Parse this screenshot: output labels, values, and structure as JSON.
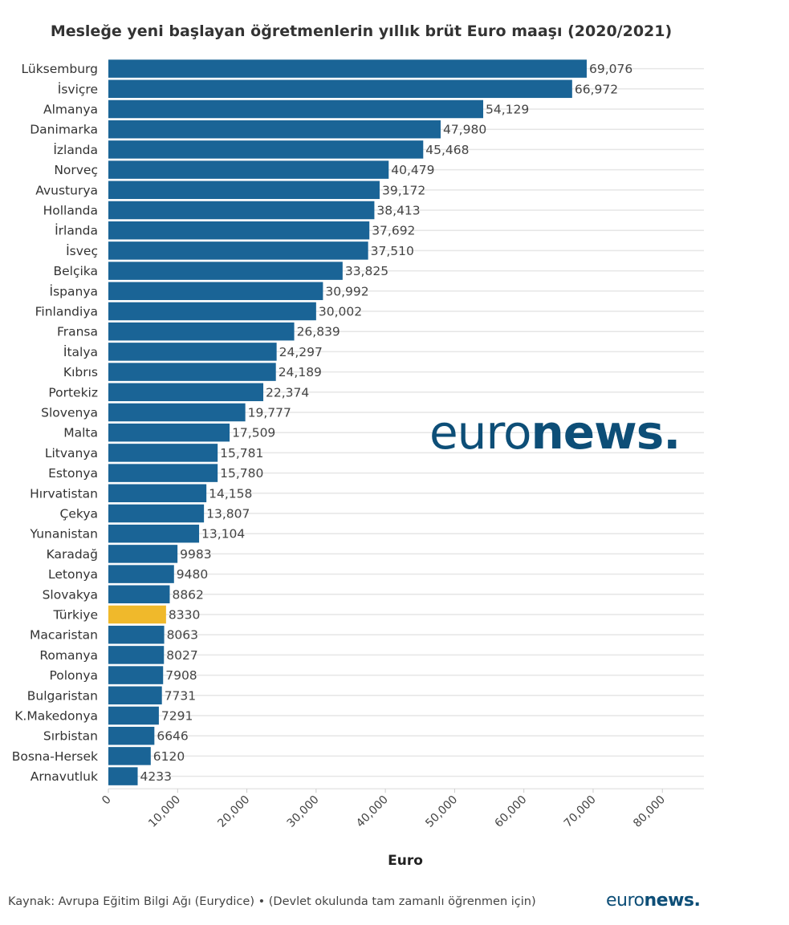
{
  "title": "Mesleğe yeni başlayan öğretmenlerin yıllık brüt Euro maaşı (2020/2021)",
  "source": "Kaynak: Avrupa Eğitim Bilgi Ağı (Eurydice) • (Devlet okulunda tam zamanlı öğrenmen için)",
  "brand": {
    "light": "euro",
    "bold": "news."
  },
  "colors": {
    "bar": "#1a6496",
    "highlight": "#f0b92b",
    "grid": "#e6e6e6",
    "brand": "#0d4e77"
  },
  "chart_data": {
    "type": "bar",
    "orientation": "horizontal",
    "title": "Mesleğe yeni başlayan öğretmenlerin yıllık brüt Euro maaşı (2020/2021)",
    "xlabel": "Euro",
    "ylabel": "",
    "xlim": [
      0,
      86000
    ],
    "xticks": [
      0,
      10000,
      20000,
      30000,
      40000,
      50000,
      60000,
      70000,
      80000
    ],
    "xtick_labels": [
      "0",
      "10,000",
      "20,000",
      "30,000",
      "40,000",
      "50,000",
      "60,000",
      "70,000",
      "80,000"
    ],
    "grid": true,
    "highlight_category": "Türkiye",
    "categories": [
      "Lüksemburg",
      "İsviçre",
      "Almanya",
      "Danimarka",
      "İzlanda",
      "Norveç",
      "Avusturya",
      "Hollanda",
      "İrlanda",
      "İsveç",
      "Belçika",
      "İspanya",
      "Finlandiya",
      "Fransa",
      "İtalya",
      "Kıbrıs",
      "Portekiz",
      "Slovenya",
      "Malta",
      "Litvanya",
      "Estonya",
      "Hırvatistan",
      "Çekya",
      "Yunanistan",
      "Karadağ",
      "Letonya",
      "Slovakya",
      "Türkiye",
      "Macaristan",
      "Romanya",
      "Polonya",
      "Bulgaristan",
      "K.Makedonya",
      "Sırbistan",
      "Bosna-Hersek",
      "Arnavutluk"
    ],
    "values": [
      69076,
      66972,
      54129,
      47980,
      45468,
      40479,
      39172,
      38413,
      37692,
      37510,
      33825,
      30992,
      30002,
      26839,
      24297,
      24189,
      22374,
      19777,
      17509,
      15781,
      15780,
      14158,
      13807,
      13104,
      9983,
      9480,
      8862,
      8330,
      8063,
      8027,
      7908,
      7731,
      7291,
      6646,
      6120,
      4233
    ],
    "value_labels": [
      "69,076",
      "66,972",
      "54,129",
      "47,980",
      "45,468",
      "40,479",
      "39,172",
      "38,413",
      "37,692",
      "37,510",
      "33,825",
      "30,992",
      "30,002",
      "26,839",
      "24,297",
      "24,189",
      "22,374",
      "19,777",
      "17,509",
      "15,781",
      "15,780",
      "14,158",
      "13,807",
      "13,104",
      "9983",
      "9480",
      "8862",
      "8330",
      "8063",
      "8027",
      "7908",
      "7731",
      "7291",
      "6646",
      "6120",
      "4233"
    ]
  }
}
